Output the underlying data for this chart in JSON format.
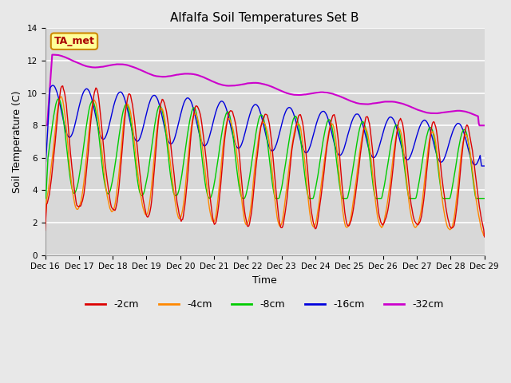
{
  "title": "Alfalfa Soil Temperatures Set B",
  "xlabel": "Time",
  "ylabel": "Soil Temperature (C)",
  "ylim": [
    0,
    14
  ],
  "yticks": [
    0,
    2,
    4,
    6,
    8,
    10,
    12,
    14
  ],
  "annotation_text": "TA_met",
  "bg_color": "#e8e8e8",
  "plot_bg_color": "#d8d8d8",
  "grid_color": "#ffffff",
  "series_colors": {
    "-2cm": "#dd0000",
    "-4cm": "#ff8800",
    "-8cm": "#00cc00",
    "-16cm": "#0000dd",
    "-32cm": "#cc00cc"
  },
  "legend_labels": [
    "-2cm",
    "-4cm",
    "-8cm",
    "-16cm",
    "-32cm"
  ],
  "x_tick_labels": [
    "Dec 16",
    "Dec 17",
    "Dec 18",
    "Dec 19",
    "Dec 20",
    "Dec 21",
    "Dec 22",
    "Dec 23",
    "Dec 24",
    "Dec 25",
    "Dec 26",
    "Dec 27",
    "Dec 28",
    "Dec 29"
  ],
  "n_days": 13,
  "points_per_day": 48
}
